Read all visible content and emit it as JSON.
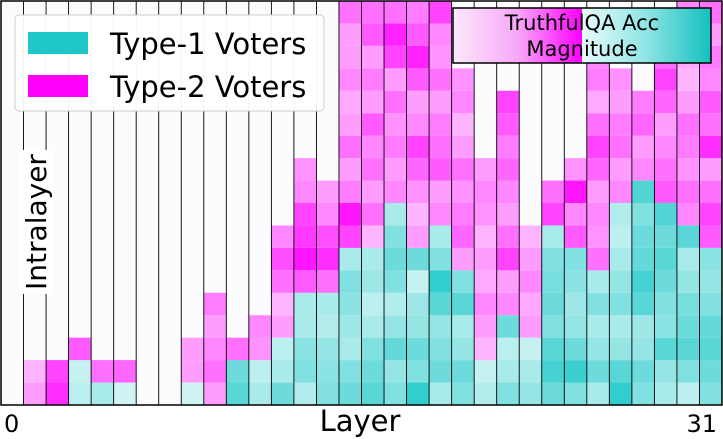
{
  "chart_data": {
    "type": "heatmap",
    "title": "",
    "xlabel": "Layer",
    "ylabel": "Intralayer",
    "x_ticks": [
      "0",
      "31"
    ],
    "num_layers": 32,
    "num_rows": 18,
    "legend": {
      "placement": "top-left",
      "entries": [
        {
          "name": "Type-1 Voters",
          "color": "#1ec8c8"
        },
        {
          "name": "Type-2 Voters",
          "color": "#ff00ff"
        }
      ]
    },
    "colorbar": {
      "placement": "top-right",
      "label_line1": "TruthfulQA Acc",
      "label_line2": "Magnitude"
    },
    "colors": {
      "type1": "#1ec8c8",
      "type2": "#ff00ff",
      "empty": "#fcfbfd"
    },
    "columns": [
      {
        "t1": [],
        "t2": []
      },
      {
        "t1": [],
        "t2": [
          0.3,
          0.2
        ]
      },
      {
        "t1": [],
        "t2": [
          0.8,
          0.7
        ]
      },
      {
        "t1": [
          0.2,
          0.15
        ],
        "t2": [
          0.6
        ]
      },
      {
        "t1": [
          0.3
        ],
        "t2": [
          0.5
        ]
      },
      {
        "t1": [
          0.1
        ],
        "t2": [
          0.55
        ]
      },
      {
        "t1": [],
        "t2": []
      },
      {
        "t1": [],
        "t2": []
      },
      {
        "t1": [
          0.1
        ],
        "t2": [
          0.3,
          0.3
        ]
      },
      {
        "t1": [],
        "t2": [
          0.3,
          0.5,
          0.4,
          0.3,
          0.45
        ]
      },
      {
        "t1": [
          0.7,
          0.6
        ],
        "t2": [
          0.5
        ]
      },
      {
        "t1": [
          0.3,
          0.2
        ],
        "t2": [
          0.35,
          0.4
        ]
      },
      {
        "t1": [
          0.6,
          0.3,
          0.2
        ],
        "t2": [
          0.3,
          0.2,
          0.5,
          0.65,
          0.4
        ]
      },
      {
        "t1": [
          0.25,
          0.5,
          0.45,
          0.3,
          0.3
        ],
        "t2": [
          0.6,
          0.9,
          0.75,
          0.7,
          0.4,
          0.35
        ]
      },
      {
        "t1": [
          0.5,
          0.45,
          0.4,
          0.25,
          0.3
        ],
        "t2": [
          0.5,
          0.8,
          0.65,
          0.4,
          0.3
        ]
      },
      {
        "t1": [
          0.6,
          0.5,
          0.3,
          0.35,
          0.45,
          0.5,
          0.3
        ],
        "t2": [
          0.7,
          0.9,
          0.45,
          0.3,
          0.5,
          0.3,
          0.25,
          0.4,
          0.3,
          0.3,
          0.5,
          0.7,
          0.45,
          0.3,
          0.55,
          0.4,
          0.45
        ]
      },
      {
        "t1": [
          0.7,
          0.6,
          0.5,
          0.3,
          0.2,
          0.35,
          0.3
        ],
        "t2": [
          0.2,
          0.5,
          0.3,
          0.5,
          0.4,
          0.6,
          0.3,
          0.45,
          0.3,
          0.6,
          0.5,
          0.7,
          0.4,
          0.3,
          0.3
        ]
      },
      {
        "t1": [
          0.5,
          0.4,
          0.65,
          0.4,
          0.25,
          0.5,
          0.6,
          0.5,
          0.3
        ],
        "t2": [
          0.4,
          0.3,
          0.45,
          0.35,
          0.5,
          0.3,
          0.7,
          0.85,
          0.5,
          0.4,
          0.6,
          0.5
        ]
      },
      {
        "t1": [
          0.9,
          0.5,
          0.6,
          0.4,
          0.35,
          0.15,
          0.6
        ],
        "t2": [
          0.3,
          0.2,
          0.35,
          0.55,
          0.7,
          0.4,
          0.3,
          0.6,
          0.85,
          0.6,
          0.45
        ]
      },
      {
        "t1": [
          0.3,
          0.6,
          0.5,
          0.4,
          0.7,
          0.9,
          0.5,
          0.3
        ],
        "t2": [
          0.4,
          0.3,
          0.6,
          0.5,
          0.45,
          0.3,
          0.5,
          0.35,
          0.4,
          0.7,
          0.85,
          0.65
        ]
      },
      {
        "t1": [
          0.5,
          0.6,
          0.4,
          0.3,
          0.7,
          0.5
        ],
        "t2": [
          0.3,
          0.55,
          0.45,
          0.35,
          0.5,
          0.3,
          0.2,
          0.4,
          0.35
        ]
      },
      {
        "t1": [
          0.25,
          0.15
        ],
        "t2": [
          0.2,
          0.3,
          0.4,
          0.25,
          0.3,
          0.2,
          0.35,
          0.4,
          0.3
        ]
      },
      {
        "t1": [
          0.5,
          0.3,
          0.2,
          0.6
        ],
        "t2": [
          0.4,
          0.3,
          0.7,
          0.5,
          0.3,
          0.4,
          0.55,
          0.45,
          0.6,
          0.7
        ]
      },
      {
        "t1": [
          0.4,
          0.3,
          0.15
        ],
        "t2": [
          0.3,
          0.25,
          0.4,
          0.3,
          0.2
        ]
      },
      {
        "t1": [
          0.6,
          0.8,
          0.7,
          0.5,
          0.6,
          0.55,
          0.5,
          0.3
        ],
        "t2": [
          0.7,
          0.5
        ]
      },
      {
        "t1": [
          0.5,
          0.85,
          0.6,
          0.4,
          0.35,
          0.45,
          0.5
        ],
        "t2": [
          0.6,
          0.4,
          0.9,
          0.35
        ]
      },
      {
        "t1": [
          0.3,
          0.6,
          0.4,
          0.3,
          0.5,
          0.3
        ],
        "t2": [
          0.5,
          0.35,
          0.4,
          0.3,
          0.55,
          0.7,
          0.5,
          0.25,
          0.45,
          0.4
        ]
      },
      {
        "t1": [
          0.9,
          0.7,
          0.4,
          0.3,
          0.5,
          0.4,
          0.3,
          0.2,
          0.25
        ],
        "t2": [
          0.4,
          0.3,
          0.5,
          0.45,
          0.3,
          0.35
        ]
      },
      {
        "t1": [
          0.5,
          0.6,
          0.4,
          0.35,
          0.7,
          0.8,
          0.65,
          0.6,
          0.5,
          0.75
        ],
        "t2": [
          0.4,
          0.3,
          0.55,
          0.45
        ]
      },
      {
        "t1": [
          0.3,
          0.4,
          0.7,
          0.45,
          0.5,
          0.6,
          0.7,
          0.6,
          0.75
        ],
        "t2": [
          0.6,
          0.5,
          0.4,
          0.3,
          0.55,
          0.7,
          0.5
        ]
      },
      {
        "t1": [
          0.2,
          0.5,
          0.7,
          0.6,
          0.55,
          0.4,
          0.3,
          0.7
        ],
        "t2": [
          0.4,
          0.5,
          0.35,
          0.45,
          0.5,
          0.3,
          0.2,
          0.25,
          0.3,
          0.4,
          0.5
        ]
      },
      {
        "t1": [
          0.5,
          0.6,
          0.7,
          0.65,
          0.5,
          0.4,
          0.45
        ],
        "t2": [
          0.6,
          0.7,
          0.5,
          0.3,
          0.8,
          0.5,
          0.6,
          0.4,
          0.45,
          0.3,
          0.5
        ]
      }
    ]
  }
}
